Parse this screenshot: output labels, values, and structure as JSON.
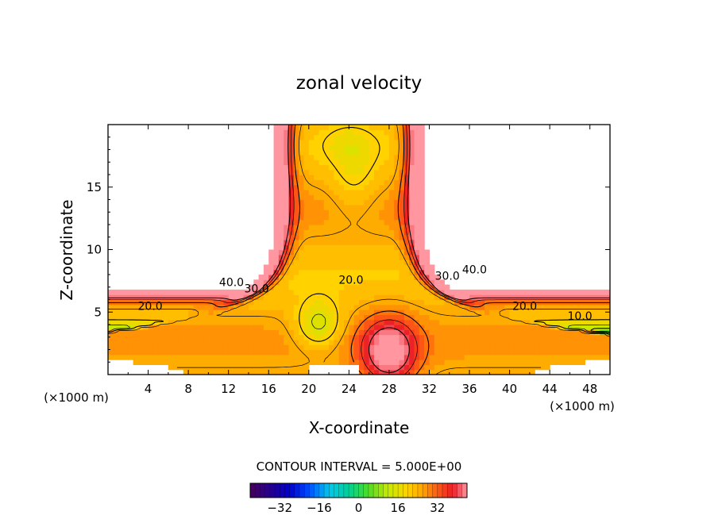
{
  "chart_data": {
    "type": "contour",
    "title": "zonal velocity",
    "xlabel": "X-coordinate",
    "ylabel": "Z-coordinate",
    "x_unit": "(×1000 m)",
    "z_unit": "(×1000 m)",
    "xlim": [
      0,
      50
    ],
    "ylim": [
      0,
      20
    ],
    "x_ticks": [
      4,
      8,
      12,
      16,
      20,
      24,
      28,
      32,
      36,
      40,
      44,
      48
    ],
    "y_ticks": [
      5,
      10,
      15
    ],
    "contour_interval_text": "CONTOUR INTERVAL = 5.000E+00",
    "contour_labels": [
      {
        "text": "40.0",
        "x": 12.3,
        "y": 7.4
      },
      {
        "text": "30.0",
        "x": 14.8,
        "y": 6.9
      },
      {
        "text": "20.0",
        "x": 4.2,
        "y": 5.5
      },
      {
        "text": "20.0",
        "x": 24.2,
        "y": 7.6
      },
      {
        "text": "30.0",
        "x": 33.8,
        "y": 7.9
      },
      {
        "text": "40.0",
        "x": 36.5,
        "y": 8.4
      },
      {
        "text": "20.0",
        "x": 41.5,
        "y": 5.5
      },
      {
        "text": "10.0",
        "x": 47.0,
        "y": 4.7
      }
    ],
    "colorbar": {
      "ticks": [
        -32,
        -16,
        0,
        16,
        32
      ],
      "range": [
        -44,
        44
      ]
    }
  }
}
